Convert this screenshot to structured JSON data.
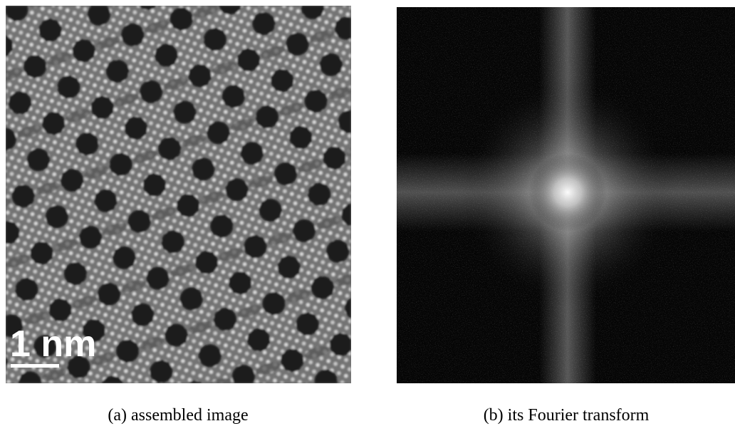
{
  "panels": [
    {
      "caption": "(a) assembled image",
      "scale_bar": "1 nm"
    },
    {
      "caption": "(b) its Fourier transform"
    }
  ]
}
